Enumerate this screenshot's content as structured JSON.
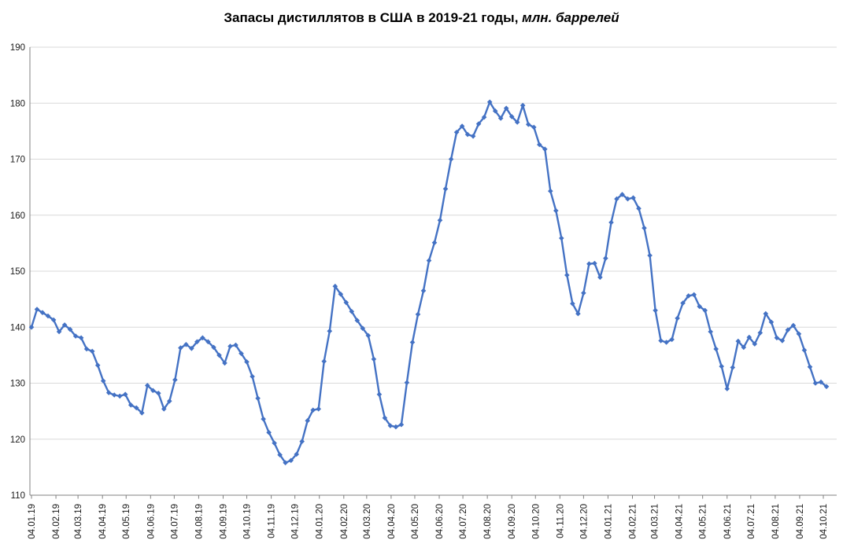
{
  "title": {
    "main": "Запасы дистиллятов в США в 2019-21 годы",
    "separator": ", ",
    "unit": "млн. баррелей"
  },
  "chart_data": {
    "type": "line",
    "series_name": "Запасы дистиллятов в США",
    "frequency": "weekly",
    "title": "Запасы дистиллятов в США в 2019-21 годы, млн. баррелей",
    "xlabel": "",
    "ylabel": "",
    "ylim": [
      110,
      190
    ],
    "ytick_step": 10,
    "ytick_labels": [
      "110",
      "120",
      "130",
      "140",
      "150",
      "160",
      "170",
      "180",
      "190"
    ],
    "grid": "horizontal",
    "legend": "none",
    "line_color": "#4472C4",
    "marker": "diamond",
    "axis_color": "#808080",
    "grid_color": "#D9D9D9",
    "x_tick_labels": [
      "04.01.19",
      "04.02.19",
      "04.03.19",
      "04.04.19",
      "04.05.19",
      "04.06.19",
      "04.07.19",
      "04.08.19",
      "04.09.19",
      "04.10.19",
      "04.11.19",
      "04.12.19",
      "04.01.20",
      "04.02.20",
      "04.03.20",
      "04.04.20",
      "04.05.20",
      "04.06.20",
      "04.07.20",
      "04.08.20",
      "04.09.20",
      "04.10.20",
      "04.11.20",
      "04.12.20",
      "04.01.21",
      "04.02.21",
      "04.03.21",
      "04.04.21",
      "04.05.21",
      "04.06.21",
      "04.07.21",
      "04.08.21",
      "04.09.21",
      "04.10.21"
    ],
    "values": [
      140.0,
      143.2,
      142.6,
      142.0,
      141.3,
      139.2,
      140.4,
      139.6,
      138.4,
      138.1,
      136.1,
      135.7,
      133.2,
      130.4,
      128.3,
      127.9,
      127.7,
      128.0,
      126.1,
      125.6,
      124.7,
      129.6,
      128.7,
      128.2,
      125.4,
      126.8,
      130.6,
      136.3,
      136.9,
      136.2,
      137.4,
      138.1,
      137.4,
      136.4,
      135.0,
      133.6,
      136.6,
      136.8,
      135.3,
      133.8,
      131.2,
      127.3,
      123.6,
      121.2,
      119.3,
      117.2,
      115.8,
      116.2,
      117.3,
      119.6,
      123.3,
      125.2,
      125.4,
      133.9,
      139.3,
      147.3,
      145.9,
      144.4,
      142.8,
      141.2,
      139.8,
      138.5,
      134.3,
      128.0,
      123.8,
      122.4,
      122.2,
      122.6,
      130.1,
      137.3,
      142.3,
      146.5,
      151.9,
      155.1,
      159.1,
      164.7,
      170.0,
      174.8,
      175.9,
      174.4,
      174.1,
      176.3,
      177.5,
      180.2,
      178.6,
      177.3,
      179.1,
      177.6,
      176.6,
      179.6,
      176.2,
      175.7,
      172.6,
      171.8,
      164.3,
      160.8,
      155.9,
      149.3,
      144.2,
      142.4,
      146.1,
      151.3,
      151.4,
      148.9,
      152.3,
      158.7,
      162.9,
      163.7,
      162.9,
      163.1,
      161.2,
      157.7,
      152.8,
      143.0,
      137.6,
      137.3,
      137.8,
      141.6,
      144.3,
      145.6,
      145.8,
      143.7,
      143.0,
      139.2,
      136.1,
      133.0,
      129.0,
      132.8,
      137.5,
      136.4,
      138.2,
      137.0,
      139.0,
      142.4,
      140.9,
      138.1,
      137.6,
      139.5,
      140.3,
      138.8,
      135.9,
      132.9,
      130.0,
      130.2,
      129.4
    ]
  }
}
